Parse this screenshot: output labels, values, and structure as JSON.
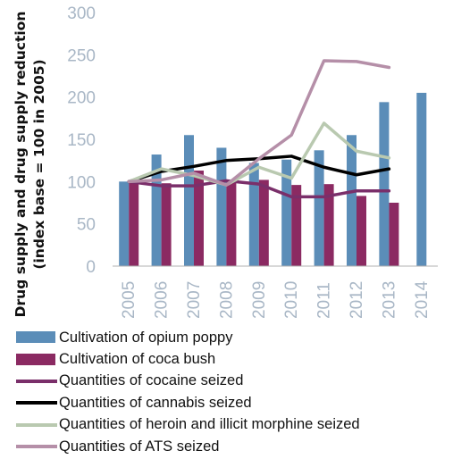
{
  "chart_data": {
    "type": "bar",
    "ylabel_lines": [
      "Drug supply and drug supply reduction",
      "(index base = 100 in 2005)"
    ],
    "xlabel": "",
    "ylim": [
      0,
      300
    ],
    "yticks": [
      0,
      50,
      100,
      150,
      200,
      250,
      300
    ],
    "grid": false,
    "legend_position": "bottom",
    "categories": [
      "2005",
      "2006",
      "2007",
      "2008",
      "2009",
      "2010",
      "2011",
      "2012",
      "2013",
      "2014"
    ],
    "bar_series": [
      {
        "name": "Cultivation of opium poppy",
        "color": "#5b8db8",
        "values": [
          100,
          132,
          155,
          140,
          122,
          126,
          137,
          155,
          194,
          205
        ]
      },
      {
        "name": "Cultivation of coca bush",
        "color": "#8b2a62",
        "values": [
          100,
          98,
          113,
          101,
          102,
          96,
          97,
          83,
          75,
          null
        ]
      }
    ],
    "line_series": [
      {
        "name": "Quantities of cocaine seized",
        "color": "#7a2f6a",
        "values": [
          100,
          95,
          95,
          101,
          97,
          82,
          82,
          89,
          89,
          null
        ]
      },
      {
        "name": "Quantities of cannabis seized",
        "color": "#000000",
        "values": [
          100,
          112,
          118,
          125,
          127,
          130,
          117,
          108,
          115,
          null
        ]
      },
      {
        "name": "Quantities of heroin and illicit morphine seized",
        "color": "#b9c9b0",
        "values": [
          100,
          115,
          107,
          96,
          117,
          104,
          169,
          136,
          128,
          null
        ]
      },
      {
        "name": "Quantities of ATS seized",
        "color": "#b58fa8",
        "values": [
          100,
          102,
          110,
          96,
          127,
          155,
          243,
          242,
          235,
          null
        ]
      }
    ]
  },
  "colors": {
    "tick_text": "#a9b7c6",
    "axis": "#b0b0b0"
  }
}
